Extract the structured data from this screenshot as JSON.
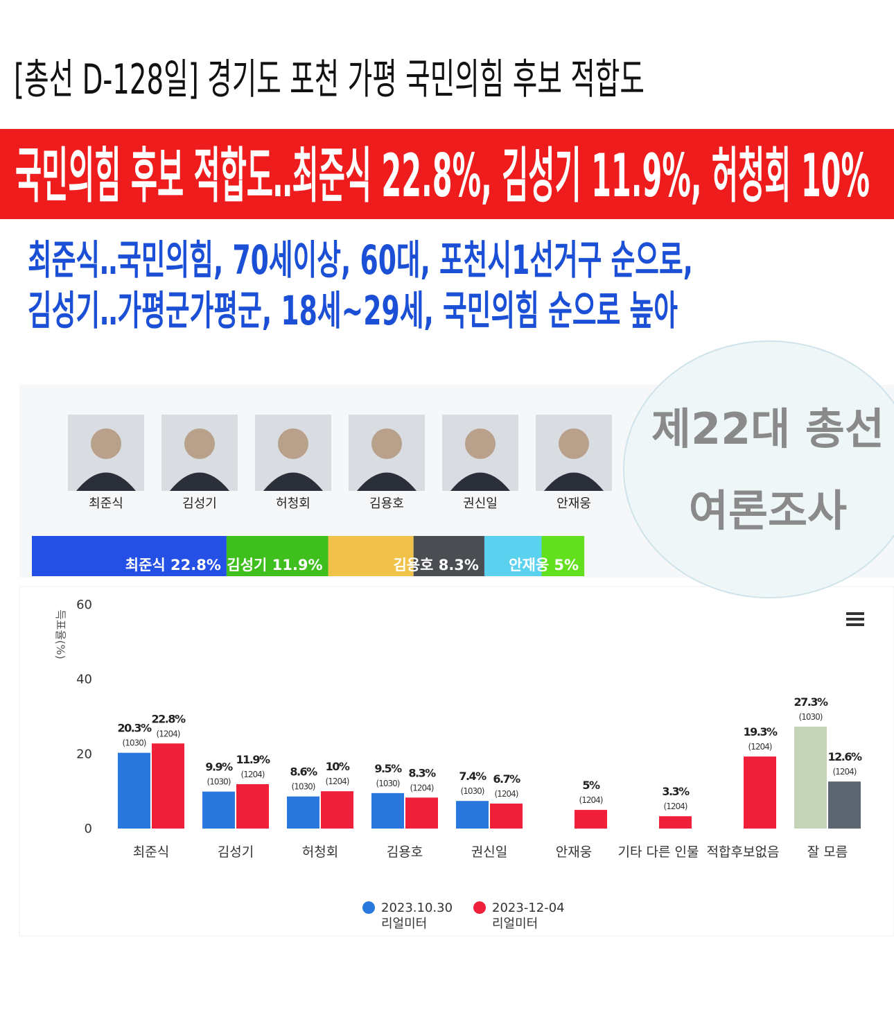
{
  "header": {
    "title": "[총선 D-128일] 경기도 포천 가평 국민의힘 후보 적합도"
  },
  "banner": {
    "headline": "국민의힘 후보 적합도‥최준식 22.8%, 김성기 11.9%, 허청회 10%"
  },
  "subtitle": {
    "lines": [
      "최준식‥국민의힘, 70세이상, 60대, 포천시1선거구 순으로,",
      "김성기‥가평군가평군, 18세~29세, 국민의힘 순으로 높아"
    ]
  },
  "candidates": {
    "names": [
      "최준식",
      "김성기",
      "허청회",
      "김용호",
      "권신일",
      "안재웅"
    ]
  },
  "share_bar": {
    "values": [
      22.8,
      11.9,
      10,
      8.3,
      6.7,
      5
    ],
    "labels": [
      "최준식 22.8%",
      "김성기 11.9%",
      null,
      "김용호 8.3%",
      null,
      "안재웅 5%"
    ],
    "colors": [
      "#2450e6",
      "#3fbf1e",
      "#f0c24a",
      "#4a4d52",
      "#5ad1ee",
      "#62e01e"
    ]
  },
  "badge": {
    "lines": [
      "제22대 총선",
      "여론조사"
    ]
  },
  "chart_data": {
    "type": "bar",
    "y_label": "득표율(%)",
    "categories": [
      "최준식",
      "김성기",
      "허청회",
      "김용호",
      "권신일",
      "안재웅",
      "기타 다른 인물",
      "적합후보없음",
      "잘 모름"
    ],
    "ylim": [
      0,
      60
    ],
    "yticks": [
      0,
      20,
      40,
      60
    ],
    "series": [
      {
        "name": "2023.10.30 리얼미터",
        "color": "#2a77dd",
        "colors": [
          "#2a77dd",
          "#2a77dd",
          "#2a77dd",
          "#2a77dd",
          "#2a77dd",
          "#2a77dd",
          "#2a77dd",
          "#2a77dd",
          "#c5d3b8"
        ],
        "values": [
          20.3,
          9.9,
          8.6,
          9.5,
          7.4,
          null,
          null,
          null,
          27.3
        ],
        "value_labels": [
          "20.3%",
          "9.9%",
          "8.6%",
          "9.5%",
          "7.4%",
          null,
          null,
          null,
          "27.3%"
        ],
        "sample_labels": [
          "(1030)",
          "(1030)",
          "(1030)",
          "(1030)",
          "(1030)",
          null,
          null,
          null,
          "(1030)"
        ]
      },
      {
        "name": "2023-12-04 리얼미터",
        "color": "#f0203a",
        "colors": [
          "#f0203a",
          "#f0203a",
          "#f0203a",
          "#f0203a",
          "#f0203a",
          "#f0203a",
          "#f0203a",
          "#f0203a",
          "#5c6670"
        ],
        "values": [
          22.8,
          11.9,
          10,
          8.3,
          6.7,
          5,
          3.3,
          19.3,
          12.6
        ],
        "value_labels": [
          "22.8%",
          "11.9%",
          "10%",
          "8.3%",
          "6.7%",
          "5%",
          "3.3%",
          "19.3%",
          "12.6%"
        ],
        "sample_labels": [
          "(1204)",
          "(1204)",
          "(1204)",
          "(1204)",
          "(1204)",
          "(1204)",
          "(1204)",
          "(1204)",
          "(1204)"
        ]
      }
    ]
  }
}
